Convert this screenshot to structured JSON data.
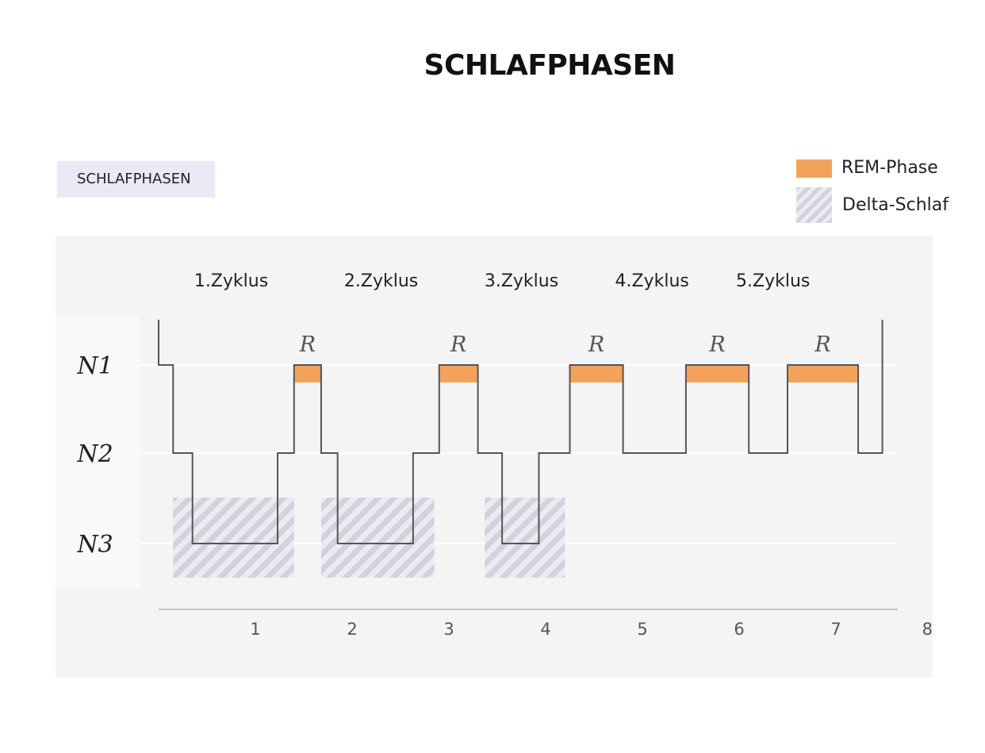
{
  "title": "SCHLAFPHASEN",
  "tag": "SCHLAFPHASEN",
  "legend": {
    "rem": "REM-Phase",
    "delta": "Delta-Schlaf"
  },
  "colors": {
    "rem": "#f4a25b",
    "delta_dark": "#d2d2dc",
    "delta_light": "#ecebf3",
    "line": "#555555",
    "panel": "#f4f4f4"
  },
  "chart_data": {
    "type": "line",
    "step": true,
    "title": "SCHLAFPHASEN",
    "x_ticks": [
      "1",
      "2",
      "3",
      "4",
      "5",
      "6",
      "7",
      "8h"
    ],
    "x_tick_values": [
      1,
      2,
      3,
      4,
      5,
      6,
      7,
      8
    ],
    "xlim": [
      0,
      8
    ],
    "y_levels": [
      "N1",
      "N2",
      "N3"
    ],
    "cycles": [
      "1.Zyklus",
      "2.Zyklus",
      "3.Zyklus",
      "4.Zyklus",
      "5.Zyklus"
    ],
    "cycle_x": [
      0.75,
      2.3,
      3.75,
      5.1,
      6.35
    ],
    "hypnogram": [
      {
        "x": 0.0,
        "stage": "wake"
      },
      {
        "x": 0.0,
        "stage": "N1"
      },
      {
        "x": 0.15,
        "stage": "N1"
      },
      {
        "x": 0.15,
        "stage": "N2"
      },
      {
        "x": 0.35,
        "stage": "N2"
      },
      {
        "x": 0.35,
        "stage": "N3"
      },
      {
        "x": 1.23,
        "stage": "N3"
      },
      {
        "x": 1.23,
        "stage": "N2"
      },
      {
        "x": 1.4,
        "stage": "N2"
      },
      {
        "x": 1.4,
        "stage": "N1"
      },
      {
        "x": 1.68,
        "stage": "N1"
      },
      {
        "x": 1.68,
        "stage": "N2"
      },
      {
        "x": 1.85,
        "stage": "N2"
      },
      {
        "x": 1.85,
        "stage": "N3"
      },
      {
        "x": 2.63,
        "stage": "N3"
      },
      {
        "x": 2.63,
        "stage": "N2"
      },
      {
        "x": 2.9,
        "stage": "N2"
      },
      {
        "x": 2.9,
        "stage": "N1"
      },
      {
        "x": 3.3,
        "stage": "N1"
      },
      {
        "x": 3.3,
        "stage": "N2"
      },
      {
        "x": 3.55,
        "stage": "N2"
      },
      {
        "x": 3.55,
        "stage": "N3"
      },
      {
        "x": 3.93,
        "stage": "N3"
      },
      {
        "x": 3.93,
        "stage": "N2"
      },
      {
        "x": 4.25,
        "stage": "N2"
      },
      {
        "x": 4.25,
        "stage": "N1"
      },
      {
        "x": 4.8,
        "stage": "N1"
      },
      {
        "x": 4.8,
        "stage": "N2"
      },
      {
        "x": 5.45,
        "stage": "N2"
      },
      {
        "x": 5.45,
        "stage": "N1"
      },
      {
        "x": 6.1,
        "stage": "N1"
      },
      {
        "x": 6.1,
        "stage": "N2"
      },
      {
        "x": 6.5,
        "stage": "N2"
      },
      {
        "x": 6.5,
        "stage": "N1"
      },
      {
        "x": 7.23,
        "stage": "N1"
      },
      {
        "x": 7.23,
        "stage": "N2"
      },
      {
        "x": 7.48,
        "stage": "N2"
      },
      {
        "x": 7.48,
        "stage": "wake"
      }
    ],
    "rem_phases": [
      {
        "start": 1.4,
        "end": 1.68,
        "label": "R"
      },
      {
        "start": 2.9,
        "end": 3.3,
        "label": "R"
      },
      {
        "start": 4.25,
        "end": 4.8,
        "label": "R"
      },
      {
        "start": 5.45,
        "end": 6.1,
        "label": "R"
      },
      {
        "start": 6.5,
        "end": 7.23,
        "label": "R"
      }
    ],
    "delta_phases": [
      {
        "start": 0.15,
        "end": 1.4
      },
      {
        "start": 1.68,
        "end": 2.85
      },
      {
        "start": 3.37,
        "end": 4.2
      }
    ],
    "legend": [
      "REM-Phase",
      "Delta-Schlaf"
    ],
    "legend_position": "top-right",
    "grid": true
  }
}
